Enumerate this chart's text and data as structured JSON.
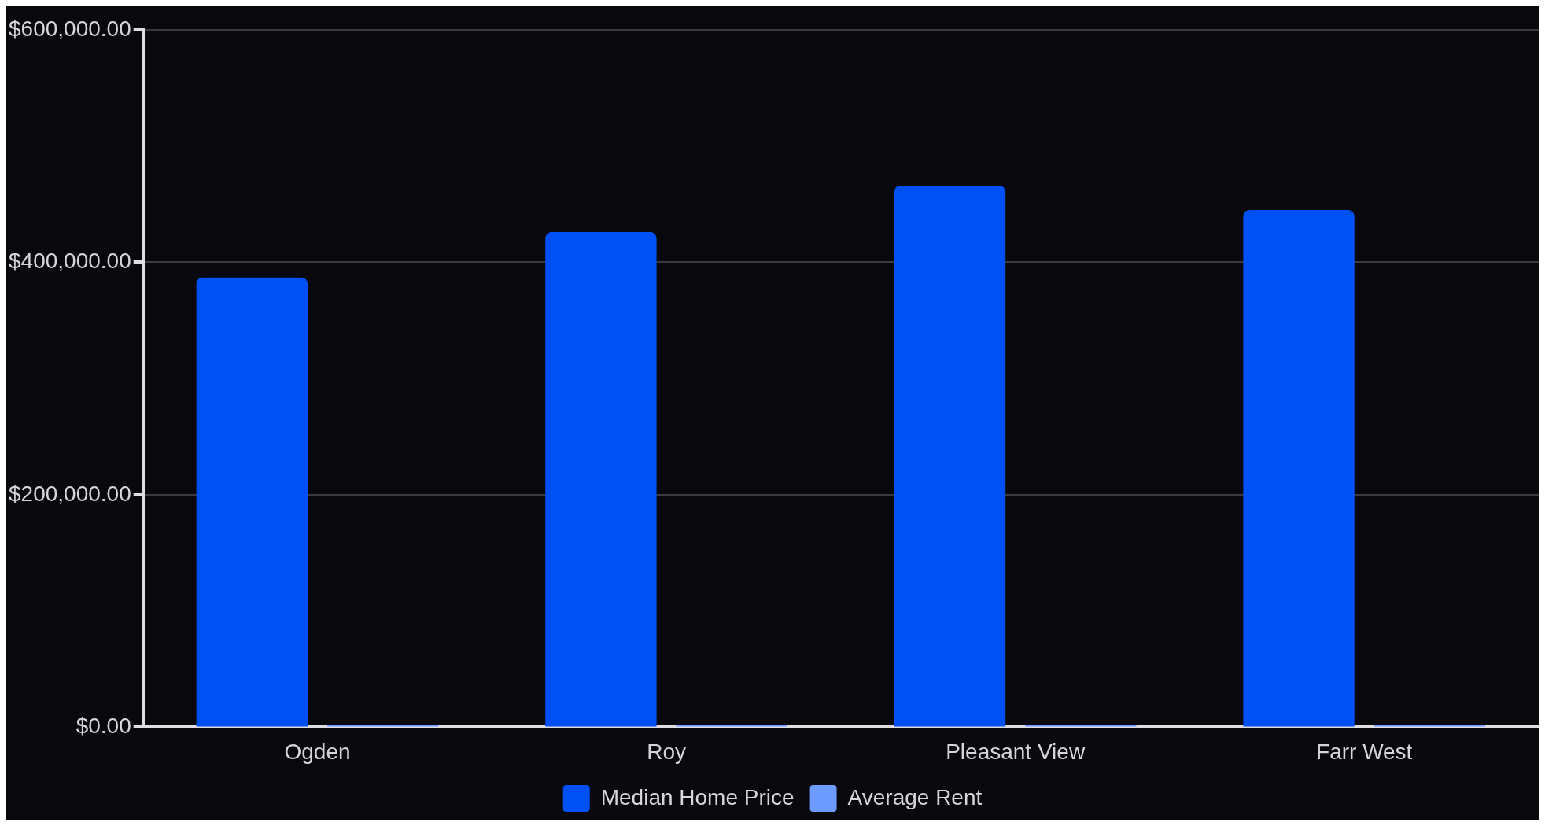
{
  "chart_data": {
    "type": "bar",
    "categories": [
      "Ogden",
      "Roy",
      "Pleasant View",
      "Farr West"
    ],
    "series": [
      {
        "name": "Median Home Price",
        "color": "#0050f5",
        "values": [
          387000,
          426000,
          466000,
          445000
        ]
      },
      {
        "name": "Average Rent",
        "color": "#6e9bff",
        "values": [
          1800,
          1800,
          1800,
          1800
        ]
      }
    ],
    "ylim": [
      0,
      600000
    ],
    "yticks": [
      {
        "value": 0,
        "label": "$0.00"
      },
      {
        "value": 200000,
        "label": "$200,000.00"
      },
      {
        "value": 400000,
        "label": "$400,000.00"
      },
      {
        "value": 600000,
        "label": "$600,000.00"
      }
    ],
    "grid": "y",
    "legend": "bottom"
  }
}
